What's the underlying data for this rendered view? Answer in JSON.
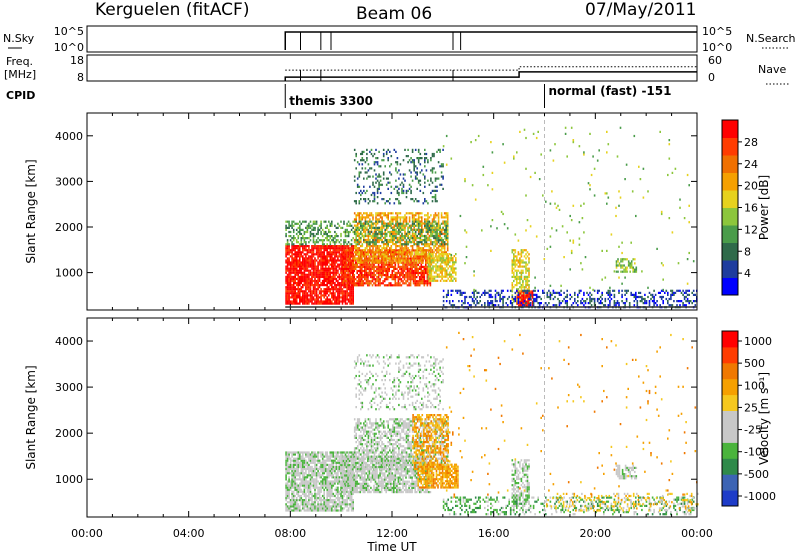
{
  "header": {
    "station": "Kerguelen (fitACF)",
    "beam": "Beam 06",
    "date": "07/May/2011"
  },
  "meta_panels": {
    "nsky_label": "N.Sky",
    "nsky_ticks": [
      "10^5",
      "10^0"
    ],
    "nsearch_label": "N.Search",
    "nsearch_ticks": [
      "10^5",
      "10^0"
    ],
    "freq_label_1": "Freq.",
    "freq_label_2": "[MHz]",
    "freq_ticks": [
      "18",
      "8"
    ],
    "nave_label": "Nave",
    "nave_ticks": [
      "60",
      "0"
    ],
    "cpid_label": "CPID",
    "cpid_segments": [
      {
        "start": 7.8,
        "name": "themis 3300"
      },
      {
        "start": 18.0,
        "name": "normal (fast) -151"
      }
    ],
    "data_start_hour": 7.8,
    "freq_steps": [
      [
        7.8,
        9.5
      ],
      [
        17.0,
        11.5
      ]
    ],
    "nave_steps": [
      [
        7.8,
        25
      ],
      [
        17.0,
        33
      ]
    ]
  },
  "chart_data": [
    {
      "type": "heatmap",
      "name": "power-panel",
      "ylabel": "Slant Range [km]",
      "yticks": [
        1000,
        2000,
        3000,
        4000
      ],
      "ylim": [
        180,
        4500
      ],
      "xlim": [
        0,
        24
      ],
      "xlabel": "Time UT",
      "xtick_labels": [
        "00:00",
        "04:00",
        "08:00",
        "12:00",
        "16:00",
        "20:00",
        "00:00"
      ],
      "colorbar_label": "Power [dB]",
      "colorbar_ticks": [
        "4",
        "8",
        "12",
        "16",
        "20",
        "24",
        "28"
      ],
      "colorbar_colors": [
        "#0000ff",
        "#1e3c9e",
        "#2f6a4a",
        "#4a9c4a",
        "#8cc63c",
        "#e6d21e",
        "#f5a000",
        "#f07000",
        "#ff3c00",
        "#ff0000"
      ],
      "regions": [
        {
          "t0": 7.8,
          "t1": 10.5,
          "r0": 300,
          "r1": 1600,
          "level": 9,
          "density": 0.85
        },
        {
          "t0": 10.0,
          "t1": 13.5,
          "r0": 700,
          "r1": 1500,
          "level": 8,
          "density": 0.8
        },
        {
          "t0": 10.5,
          "t1": 14.2,
          "r0": 1200,
          "r1": 2300,
          "level": 6,
          "density": 0.6
        },
        {
          "t0": 7.8,
          "t1": 14.2,
          "r0": 1600,
          "r1": 2100,
          "level": 3,
          "density": 0.45
        },
        {
          "t0": 10.5,
          "t1": 14.0,
          "r0": 2500,
          "r1": 3700,
          "level": 2,
          "density": 0.2
        },
        {
          "t0": 13.4,
          "t1": 14.5,
          "r0": 800,
          "r1": 1400,
          "level": 5,
          "density": 0.7
        },
        {
          "t0": 16.7,
          "t1": 17.4,
          "r0": 300,
          "r1": 1500,
          "level": 5,
          "density": 0.6
        },
        {
          "t0": 16.9,
          "t1": 17.5,
          "r0": 250,
          "r1": 600,
          "level": 9,
          "density": 0.8
        },
        {
          "t0": 14.0,
          "t1": 24.0,
          "r0": 220,
          "r1": 600,
          "level": 1,
          "density": 0.35
        },
        {
          "t0": 20.8,
          "t1": 21.6,
          "r0": 1000,
          "r1": 1300,
          "level": 4,
          "density": 0.6
        },
        {
          "t0": 14.0,
          "t1": 24.0,
          "r0": 600,
          "r1": 4200,
          "level": 4,
          "density": 0.015
        }
      ]
    },
    {
      "type": "heatmap",
      "name": "velocity-panel",
      "ylabel": "Slant Range [km]",
      "yticks": [
        1000,
        2000,
        3000,
        4000
      ],
      "ylim": [
        180,
        4500
      ],
      "xlim": [
        0,
        24
      ],
      "xlabel": "Time UT",
      "xtick_labels": [
        "00:00",
        "04:00",
        "08:00",
        "12:00",
        "16:00",
        "20:00",
        "00:00"
      ],
      "colorbar_label": "Velocity [m s⁻¹]",
      "colorbar_ticks": [
        "1000",
        "500",
        "100",
        "25",
        "-25",
        "-100",
        "-500",
        "-1000"
      ],
      "colorbar_colors": [
        "#1e3cc8",
        "#3c64b4",
        "#2f8a4a",
        "#4ab43c",
        "#c8c8c8",
        "#c8c8c8",
        "#f5c81e",
        "#f5a000",
        "#f07800",
        "#ff3c00",
        "#ff0000"
      ],
      "regions": [
        {
          "t0": 7.8,
          "t1": 10.5,
          "r0": 300,
          "r1": 1600,
          "level": 4,
          "density": 0.8
        },
        {
          "t0": 10.0,
          "t1": 13.5,
          "r0": 700,
          "r1": 1500,
          "level": 4,
          "density": 0.75
        },
        {
          "t0": 10.5,
          "t1": 14.2,
          "r0": 1200,
          "r1": 2300,
          "level": 4,
          "density": 0.55
        },
        {
          "t0": 12.8,
          "t1": 14.2,
          "r0": 1200,
          "r1": 2400,
          "level": 7,
          "density": 0.5
        },
        {
          "t0": 13.0,
          "t1": 14.6,
          "r0": 800,
          "r1": 1300,
          "level": 7,
          "density": 0.75
        },
        {
          "t0": 10.5,
          "t1": 14.0,
          "r0": 2500,
          "r1": 3700,
          "level": 4,
          "density": 0.2
        },
        {
          "t0": 16.7,
          "t1": 17.4,
          "r0": 400,
          "r1": 1400,
          "level": 4,
          "density": 0.55
        },
        {
          "t0": 14.0,
          "t1": 24.0,
          "r0": 220,
          "r1": 600,
          "level": 3,
          "density": 0.3
        },
        {
          "t0": 18.0,
          "t1": 24.0,
          "r0": 300,
          "r1": 700,
          "level": 6,
          "density": 0.2
        },
        {
          "t0": 20.8,
          "t1": 21.6,
          "r0": 1000,
          "r1": 1300,
          "level": 4,
          "density": 0.6
        },
        {
          "t0": 14.0,
          "t1": 24.0,
          "r0": 600,
          "r1": 4200,
          "level": 7,
          "density": 0.012
        }
      ]
    }
  ]
}
